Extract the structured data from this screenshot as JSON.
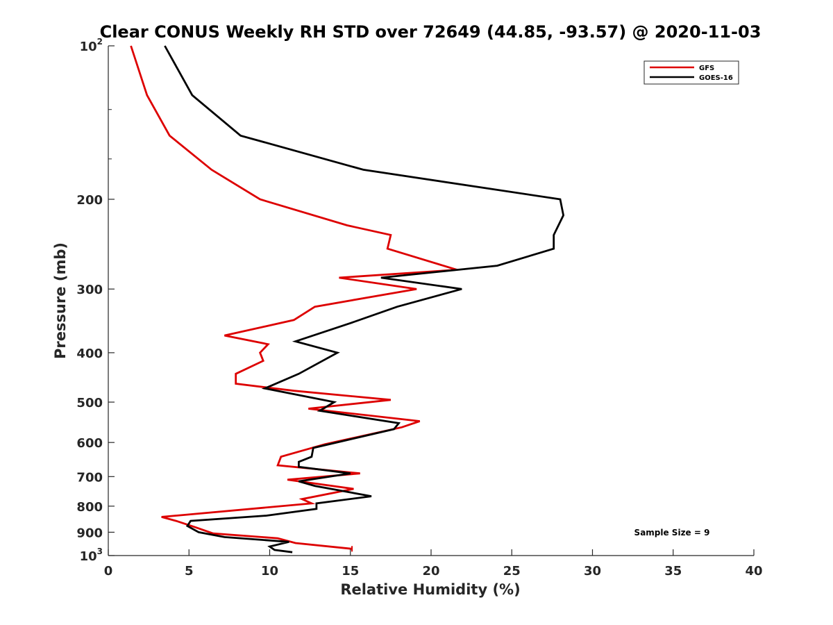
{
  "chart_data": {
    "type": "line",
    "title": "Clear CONUS Weekly RH STD over 72649 (44.85, -93.57) @ 2020-11-03",
    "xlabel": "Relative Humidity (%)",
    "ylabel": "Pressure (mb)",
    "xlim": [
      0,
      40
    ],
    "ylim": [
      100,
      1000
    ],
    "y_scale": "log",
    "y_reversed": true,
    "x_ticks": [
      "0",
      "5",
      "10",
      "15",
      "20",
      "25",
      "30",
      "35",
      "40"
    ],
    "y_ticks": [
      {
        "value": 100,
        "base": "10",
        "exp": "2"
      },
      {
        "value": 200,
        "label": "200"
      },
      {
        "value": 300,
        "label": "300"
      },
      {
        "value": 400,
        "label": "400"
      },
      {
        "value": 500,
        "label": "500"
      },
      {
        "value": 600,
        "label": "600"
      },
      {
        "value": 700,
        "label": "700"
      },
      {
        "value": 800,
        "label": "800"
      },
      {
        "value": 900,
        "label": "900"
      },
      {
        "value": 1000,
        "base": "10",
        "exp": "3"
      }
    ],
    "grid": false,
    "legend_position": "top-right",
    "annotation": "Sample Size = 9",
    "series": [
      {
        "name": "GFS",
        "color": "#dd0000",
        "points": [
          [
            1.4,
            100
          ],
          [
            2.4,
            125
          ],
          [
            3.8,
            150
          ],
          [
            6.4,
            175
          ],
          [
            9.4,
            200
          ],
          [
            14.8,
            225
          ],
          [
            17.5,
            235
          ],
          [
            17.3,
            250
          ],
          [
            21.6,
            275
          ],
          [
            14.3,
            285
          ],
          [
            19.1,
            300
          ],
          [
            12.8,
            325
          ],
          [
            11.5,
            345
          ],
          [
            7.2,
            370
          ],
          [
            9.9,
            385
          ],
          [
            9.4,
            400
          ],
          [
            9.6,
            415
          ],
          [
            7.9,
            440
          ],
          [
            7.9,
            460
          ],
          [
            11.5,
            475
          ],
          [
            17.5,
            495
          ],
          [
            12.4,
            515
          ],
          [
            19.3,
            545
          ],
          [
            18.2,
            560
          ],
          [
            13.4,
            605
          ],
          [
            10.7,
            640
          ],
          [
            10.5,
            665
          ],
          [
            15.6,
            690
          ],
          [
            11.1,
            710
          ],
          [
            15.2,
            740
          ],
          [
            12.0,
            775
          ],
          [
            12.6,
            790
          ],
          [
            3.3,
            840
          ],
          [
            4.2,
            855
          ],
          [
            5.4,
            880
          ],
          [
            6.5,
            905
          ],
          [
            10.5,
            925
          ],
          [
            11.6,
            945
          ],
          [
            15.1,
            970
          ]
        ]
      },
      {
        "name": "GOES-16",
        "color": "#000000",
        "points": [
          [
            3.5,
            100
          ],
          [
            5.2,
            125
          ],
          [
            8.2,
            150
          ],
          [
            15.8,
            175
          ],
          [
            28.0,
            200
          ],
          [
            28.2,
            215
          ],
          [
            27.6,
            235
          ],
          [
            27.6,
            250
          ],
          [
            24.1,
            270
          ],
          [
            16.9,
            285
          ],
          [
            21.9,
            300
          ],
          [
            17.9,
            325
          ],
          [
            15.0,
            350
          ],
          [
            11.6,
            380
          ],
          [
            14.2,
            400
          ],
          [
            11.8,
            440
          ],
          [
            9.7,
            470
          ],
          [
            14.0,
            500
          ],
          [
            13.1,
            520
          ],
          [
            18.0,
            550
          ],
          [
            17.7,
            565
          ],
          [
            12.7,
            615
          ],
          [
            12.6,
            640
          ],
          [
            11.8,
            655
          ],
          [
            11.8,
            670
          ],
          [
            15.0,
            690
          ],
          [
            11.8,
            715
          ],
          [
            12.8,
            730
          ],
          [
            16.3,
            765
          ],
          [
            12.9,
            790
          ],
          [
            12.9,
            810
          ],
          [
            9.8,
            835
          ],
          [
            5.1,
            855
          ],
          [
            4.9,
            875
          ],
          [
            5.6,
            900
          ],
          [
            7.2,
            920
          ],
          [
            11.2,
            940
          ],
          [
            10.0,
            960
          ],
          [
            10.3,
            975
          ],
          [
            11.4,
            985
          ]
        ]
      }
    ]
  }
}
